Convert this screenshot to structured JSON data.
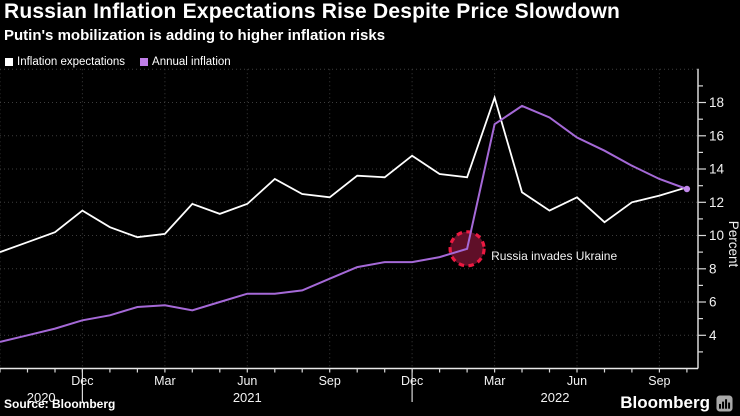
{
  "header": {
    "title": "Russian Inflation Expectations Rise Despite Price Slowdown",
    "subtitle": "Putin's mobilization is adding to higher inflation risks"
  },
  "legend": [
    {
      "label": "Inflation expectations",
      "color": "#ffffff"
    },
    {
      "label": "Annual inflation",
      "color": "#c07fe8"
    }
  ],
  "chart_data": {
    "type": "line",
    "x": [
      "Sep 2020",
      "Oct 2020",
      "Nov 2020",
      "Dec 2020",
      "Jan 2021",
      "Feb 2021",
      "Mar 2021",
      "Apr 2021",
      "May 2021",
      "Jun 2021",
      "Jul 2021",
      "Aug 2021",
      "Sep 2021",
      "Oct 2021",
      "Nov 2021",
      "Dec 2021",
      "Jan 2022",
      "Feb 2022",
      "Mar 2022",
      "Apr 2022",
      "May 2022",
      "Jun 2022",
      "Jul 2022",
      "Aug 2022",
      "Sep 2022",
      "Oct 2022"
    ],
    "series": [
      {
        "name": "Inflation expectations",
        "color": "#ffffff",
        "values": [
          9.0,
          9.6,
          10.2,
          11.5,
          10.5,
          9.9,
          10.1,
          11.9,
          11.3,
          11.9,
          13.4,
          12.5,
          12.3,
          13.6,
          13.5,
          14.8,
          13.7,
          13.5,
          18.3,
          12.6,
          11.5,
          12.3,
          10.8,
          12.0,
          12.4,
          12.9
        ]
      },
      {
        "name": "Annual inflation",
        "color": "#a569d7",
        "end_marker": true,
        "values": [
          3.6,
          4.0,
          4.4,
          4.9,
          5.2,
          5.7,
          5.8,
          5.5,
          6.0,
          6.5,
          6.5,
          6.7,
          7.4,
          8.1,
          8.4,
          8.4,
          8.7,
          9.2,
          16.7,
          17.8,
          17.1,
          15.9,
          15.1,
          14.2,
          13.4,
          12.8
        ]
      }
    ],
    "title": "Russian Inflation Expectations Rise Despite Price Slowdown",
    "xlabel": "",
    "ylabel": "Percent",
    "ylim": [
      2,
      20
    ],
    "y_major_ticks": [
      4,
      6,
      8,
      10,
      12,
      14,
      16,
      18
    ],
    "grid": "dotted",
    "legend_position": "top-left",
    "x_quarter_labels": [
      {
        "label": "Dec",
        "i": 3
      },
      {
        "label": "Mar",
        "i": 6
      },
      {
        "label": "Jun",
        "i": 9
      },
      {
        "label": "Sep",
        "i": 12
      },
      {
        "label": "Dec",
        "i": 15
      },
      {
        "label": "Mar",
        "i": 18
      },
      {
        "label": "Jun",
        "i": 21
      },
      {
        "label": "Sep",
        "i": 24
      }
    ],
    "x_year_labels": [
      {
        "label": "2020",
        "center_i": 1.5
      },
      {
        "label": "2021",
        "center_i": 9
      },
      {
        "label": "2022",
        "center_i": 20.2
      }
    ],
    "year_break_indices": [
      3,
      15
    ],
    "annotation": {
      "text": "Russia invades Ukraine",
      "month_index": 17,
      "circle_stroke": "#eb1941",
      "circle_fill": "#5f0f28"
    }
  },
  "footer": {
    "source": "Source: Bloomberg",
    "brand": "Bloomberg",
    "brand_icon": "chart-bars-icon"
  }
}
